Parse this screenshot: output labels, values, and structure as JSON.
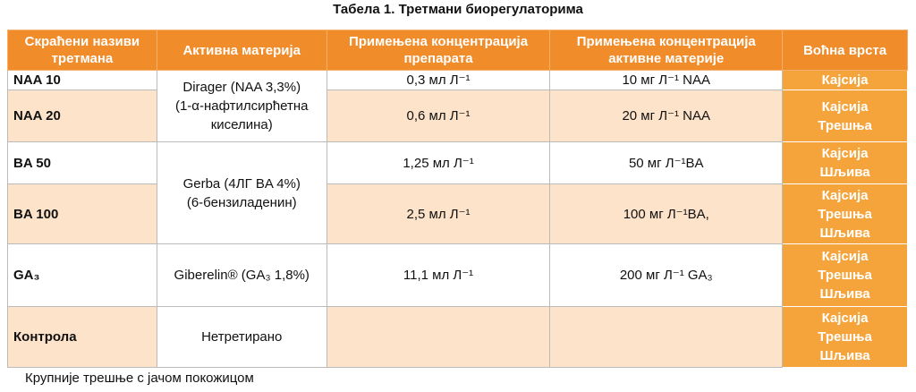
{
  "title": "Табела 1. Третмани биорегулаторима",
  "table": {
    "header": [
      "Скраћени називи третмана",
      "Активна материја",
      "Примењена концентрација препарата",
      "Примењена концентрација активне материје",
      "Воћна врста"
    ],
    "rows": [
      {
        "treatment": "NAA 10",
        "substance": [
          "Dirager (NAA 3,3%)",
          "(1-α-нафтилсирћетна",
          "киселина)"
        ],
        "preparation": "0,3 мл Л⁻¹",
        "active": "10 мг Л⁻¹ NAA",
        "fruit": [
          "Кајсија"
        ]
      },
      {
        "treatment": "NAA 20",
        "preparation": "0,6 мл Л⁻¹",
        "active": "20 мг Л⁻¹ NAA",
        "fruit": [
          "Кајсија",
          "Трешња"
        ]
      },
      {
        "treatment": "BA 50",
        "substance": [
          "Gerba (4ЛГ BA 4%)",
          "(6-бензиладенин)"
        ],
        "preparation": "1,25 мл Л⁻¹",
        "active": "50 мг Л⁻¹BA",
        "fruit": [
          "Кајсија",
          "Шљива"
        ]
      },
      {
        "treatment": "BA 100",
        "preparation": "2,5 мл Л⁻¹",
        "active": "100 мг Л⁻¹BA,",
        "fruit": [
          "Кајсија",
          "Трешња",
          "Шљива"
        ]
      },
      {
        "treatment": "GA₃",
        "substance": [
          "Giberelin® (GA₃ 1,8%)"
        ],
        "preparation": "11,1 мл Л⁻¹",
        "active": "200 мг Л⁻¹ GA₃",
        "fruit": [
          "Кајсија",
          "Трешња",
          "Шљива"
        ]
      },
      {
        "treatment": "Контрола",
        "substance": [
          "Нетретирано"
        ],
        "fruit": [
          "Кајсија",
          "Трешња",
          "Шљива"
        ]
      }
    ]
  },
  "footer": "Крупније трешње с јачом покожицом"
}
